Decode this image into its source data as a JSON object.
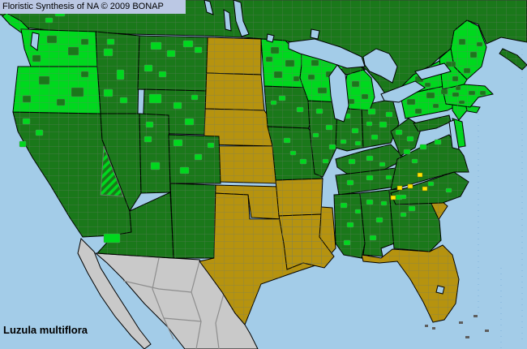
{
  "header": {
    "title": "Floristic Synthesis of NA © 2009 BONAP"
  },
  "species": {
    "label": "Luzula multiflora"
  },
  "colors": {
    "water": "#A3CCE8",
    "land_dark_green": "#1A781A",
    "land_bright_green": "#00D81E",
    "land_olive": "#B6930F",
    "land_gray_unmapped": "#C9C9C9",
    "rare_yellow": "#FFE400",
    "county_line": "#6B7B6B",
    "state_line": "#000000",
    "mexico_state_line": "#8E8E8E",
    "island_gray": "#5E5E5E",
    "titlebar_bg": "#BBC8E4",
    "text": "#000000",
    "graticule": "#7FB2DC"
  },
  "map": {
    "type": "choropleth",
    "region": "Conterminous United States with southern Canada and northern Mexico",
    "unit": "US counties",
    "categories": [
      {
        "color_key": "land_bright_green",
        "description": "bright green counties (documented county records)"
      },
      {
        "color_key": "land_dark_green",
        "description": "dark green land (state-level presence base)"
      },
      {
        "color_key": "land_olive",
        "description": "olive/gold states (no records shown)"
      },
      {
        "color_key": "rare_yellow",
        "description": "yellow county markers"
      },
      {
        "color_key": "land_gray_unmapped",
        "description": "gray land outside mapped area (Mexico)"
      },
      {
        "color_key": "water",
        "description": "oceans, Great Lakes and large lakes"
      }
    ],
    "olive_states": [
      "North Dakota",
      "South Dakota",
      "Nebraska",
      "Kansas",
      "Oklahoma",
      "Texas",
      "Arkansas",
      "Louisiana",
      "South Carolina",
      "Florida"
    ],
    "green_area_note": "All other conterminous states green; bright-green county clusters densest in Pacific Northwest, upper Midwest, Ohio Valley and Northeast",
    "rare_markers": {
      "count": 5,
      "area": "western and central North Carolina near the Tennessee border"
    },
    "hatched_county": {
      "state": "Nevada",
      "note": "diagonally striped county in south-central Nevada"
    }
  }
}
